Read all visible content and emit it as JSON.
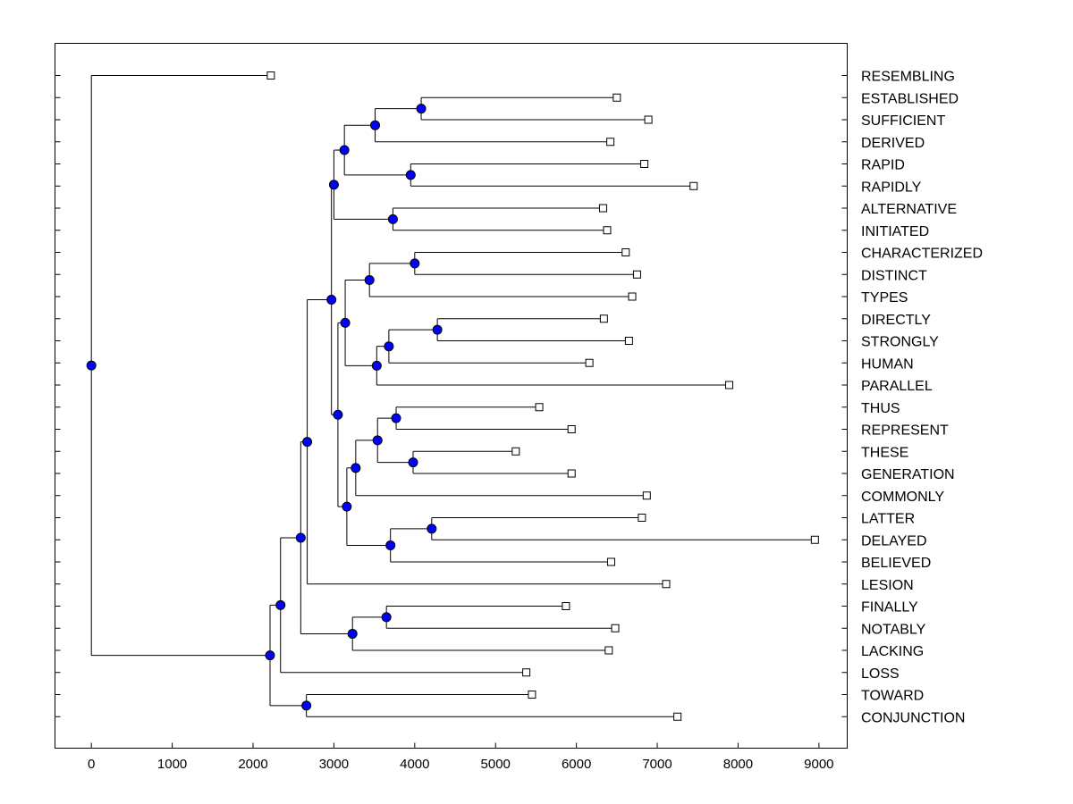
{
  "chart_data": {
    "type": "dendrogram",
    "title": "",
    "xlabel": "",
    "ylabel": "",
    "xlim": [
      -450,
      9350
    ],
    "xticks": [
      0,
      1000,
      2000,
      3000,
      4000,
      5000,
      6000,
      7000,
      8000,
      9000
    ],
    "grid": false,
    "legend": "none",
    "colors": {
      "node": "#0000ff",
      "leaf": "#ffffff",
      "line": "#000000"
    },
    "leaves": [
      {
        "label": "RESEMBLING",
        "value": 2220
      },
      {
        "label": "ESTABLISHED",
        "value": 6500
      },
      {
        "label": "SUFFICIENT",
        "value": 6890
      },
      {
        "label": "DERIVED",
        "value": 6420
      },
      {
        "label": "RAPID",
        "value": 6840
      },
      {
        "label": "RAPIDLY",
        "value": 7450
      },
      {
        "label": "ALTERNATIVE",
        "value": 6330
      },
      {
        "label": "INITIATED",
        "value": 6380
      },
      {
        "label": "CHARACTERIZED",
        "value": 6610
      },
      {
        "label": "DISTINCT",
        "value": 6750
      },
      {
        "label": "TYPES",
        "value": 6690
      },
      {
        "label": "DIRECTLY",
        "value": 6340
      },
      {
        "label": "STRONGLY",
        "value": 6650
      },
      {
        "label": "HUMAN",
        "value": 6160
      },
      {
        "label": "PARALLEL",
        "value": 7890
      },
      {
        "label": "THUS",
        "value": 5540
      },
      {
        "label": "REPRESENT",
        "value": 5940
      },
      {
        "label": "THESE",
        "value": 5250
      },
      {
        "label": "GENERATION",
        "value": 5940
      },
      {
        "label": "COMMONLY",
        "value": 6870
      },
      {
        "label": "LATTER",
        "value": 6810
      },
      {
        "label": "DELAYED",
        "value": 8950
      },
      {
        "label": "BELIEVED",
        "value": 6430
      },
      {
        "label": "LESION",
        "value": 7110
      },
      {
        "label": "FINALLY",
        "value": 5870
      },
      {
        "label": "NOTABLY",
        "value": 6480
      },
      {
        "label": "LACKING",
        "value": 6400
      },
      {
        "label": "LOSS",
        "value": 5380
      },
      {
        "label": "TOWARD",
        "value": 5450
      },
      {
        "label": "CONJUNCTION",
        "value": 7250
      }
    ],
    "tree": {
      "v": 0,
      "c": [
        {
          "leaf": 0
        },
        {
          "v": 2210,
          "c": [
            {
              "v": 2340,
              "c": [
                {
                  "v": 2590,
                  "c": [
                    {
                      "v": 2670,
                      "c": [
                        {
                          "v": 2970,
                          "c": [
                            {
                              "v": 3000,
                              "c": [
                                {
                                  "v": 3130,
                                  "c": [
                                    {
                                      "v": 3510,
                                      "c": [
                                        {
                                          "v": 4080,
                                          "c": [
                                            {
                                              "leaf": 1
                                            },
                                            {
                                              "leaf": 2
                                            }
                                          ]
                                        },
                                        {
                                          "leaf": 3
                                        }
                                      ]
                                    },
                                    {
                                      "v": 3950,
                                      "c": [
                                        {
                                          "leaf": 4
                                        },
                                        {
                                          "leaf": 5
                                        }
                                      ]
                                    }
                                  ]
                                },
                                {
                                  "v": 3730,
                                  "c": [
                                    {
                                      "leaf": 6
                                    },
                                    {
                                      "leaf": 7
                                    }
                                  ]
                                }
                              ]
                            },
                            {
                              "v": 3050,
                              "c": [
                                {
                                  "v": 3140,
                                  "c": [
                                    {
                                      "v": 3440,
                                      "c": [
                                        {
                                          "v": 4000,
                                          "c": [
                                            {
                                              "leaf": 8
                                            },
                                            {
                                              "leaf": 9
                                            }
                                          ]
                                        },
                                        {
                                          "leaf": 10
                                        }
                                      ]
                                    },
                                    {
                                      "v": 3530,
                                      "c": [
                                        {
                                          "v": 3680,
                                          "c": [
                                            {
                                              "v": 4280,
                                              "c": [
                                                {
                                                  "leaf": 11
                                                },
                                                {
                                                  "leaf": 12
                                                }
                                              ]
                                            },
                                            {
                                              "leaf": 13
                                            }
                                          ]
                                        },
                                        {
                                          "leaf": 14
                                        }
                                      ]
                                    }
                                  ]
                                },
                                {
                                  "v": 3160,
                                  "c": [
                                    {
                                      "v": 3270,
                                      "c": [
                                        {
                                          "v": 3540,
                                          "c": [
                                            {
                                              "v": 3770,
                                              "c": [
                                                {
                                                  "leaf": 15
                                                },
                                                {
                                                  "leaf": 16
                                                }
                                              ]
                                            },
                                            {
                                              "v": 3980,
                                              "c": [
                                                {
                                                  "leaf": 17
                                                },
                                                {
                                                  "leaf": 18
                                                }
                                              ]
                                            }
                                          ]
                                        },
                                        {
                                          "leaf": 19
                                        }
                                      ]
                                    },
                                    {
                                      "v": 3700,
                                      "c": [
                                        {
                                          "v": 4210,
                                          "c": [
                                            {
                                              "leaf": 20
                                            },
                                            {
                                              "leaf": 21
                                            }
                                          ]
                                        },
                                        {
                                          "leaf": 22
                                        }
                                      ]
                                    }
                                  ]
                                }
                              ]
                            }
                          ]
                        },
                        {
                          "leaf": 23
                        }
                      ]
                    },
                    {
                      "v": 3230,
                      "c": [
                        {
                          "v": 3650,
                          "c": [
                            {
                              "leaf": 24
                            },
                            {
                              "leaf": 25
                            }
                          ]
                        },
                        {
                          "leaf": 26
                        }
                      ]
                    }
                  ]
                },
                {
                  "leaf": 27
                }
              ]
            },
            {
              "v": 2660,
              "c": [
                {
                  "leaf": 28
                },
                {
                  "leaf": 29
                }
              ]
            }
          ]
        }
      ]
    }
  }
}
